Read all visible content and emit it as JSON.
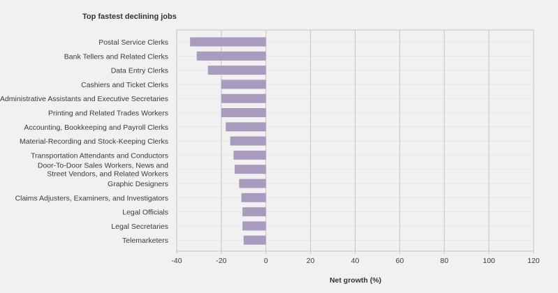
{
  "chart_data": {
    "type": "bar",
    "orientation": "horizontal",
    "title": "Top fastest declining jobs",
    "xlabel": "Net growth (%)",
    "ylabel": "",
    "xlim": [
      -40,
      120
    ],
    "xticks": [
      -40,
      -20,
      0,
      20,
      40,
      60,
      80,
      100,
      120
    ],
    "grid": true,
    "bar_color": "#a99bbd",
    "categories": [
      "Postal Service Clerks",
      "Bank Tellers and Related Clerks",
      "Data Entry Clerks",
      "Cashiers and Ticket Clerks",
      "Administrative Assistants and Executive Secretaries",
      "Printing and Related Trades Workers",
      "Accounting, Bookkeeping and Payroll Clerks",
      "Material-Recording and Stock-Keeping Clerks",
      "Transportation Attendants and Conductors",
      "Door-To-Door Sales Workers, News and\nStreet Vendors, and Related Workers",
      "Graphic Designers",
      "Claims Adjusters, Examiners, and Investigators",
      "Legal Officials",
      "Legal Secretaries",
      "Telemarketers"
    ],
    "values": [
      -34,
      -31,
      -26,
      -20,
      -20,
      -20,
      -18,
      -16,
      -14.5,
      -14,
      -12,
      -11,
      -10.5,
      -10.5,
      -10
    ]
  }
}
